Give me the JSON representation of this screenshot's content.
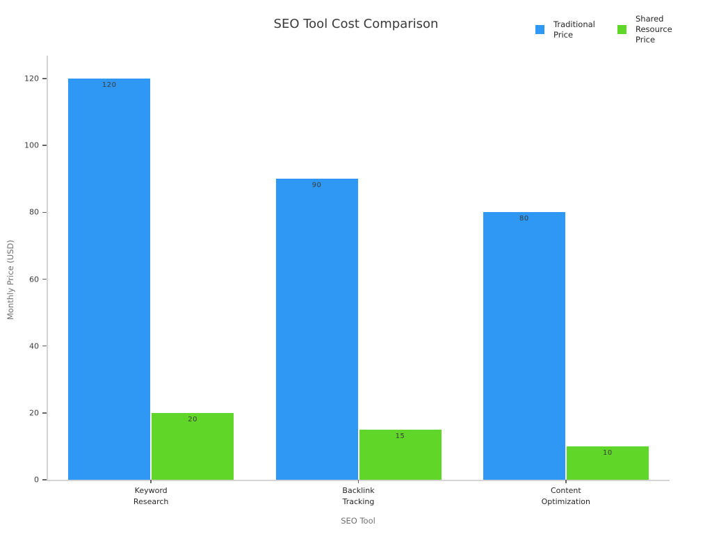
{
  "chart_data": {
    "type": "bar",
    "title": "SEO Tool Cost Comparison",
    "xlabel": "SEO Tool",
    "ylabel": "Monthly Price (USD)",
    "categories": [
      "Keyword Research",
      "Backlink Tracking",
      "Content Optimization"
    ],
    "series": [
      {
        "name": "Traditional Price",
        "color": "#2F97F4",
        "values": [
          120,
          90,
          80
        ]
      },
      {
        "name": "Shared Resource Price",
        "color": "#60D628",
        "values": [
          20,
          15,
          10
        ]
      }
    ],
    "yticks": [
      0,
      20,
      40,
      60,
      80,
      100,
      120
    ],
    "ylim": [
      0,
      125
    ],
    "grid": false,
    "legend_position": "top-right",
    "bar_value_labels": [
      "120",
      "90",
      "80",
      "20",
      "15",
      "10"
    ]
  },
  "colors": {
    "spine": "#d4d4d4",
    "tick_text": "#3a3a3a",
    "axis_label_text": "#707070",
    "title_text": "#3a3a3a"
  }
}
